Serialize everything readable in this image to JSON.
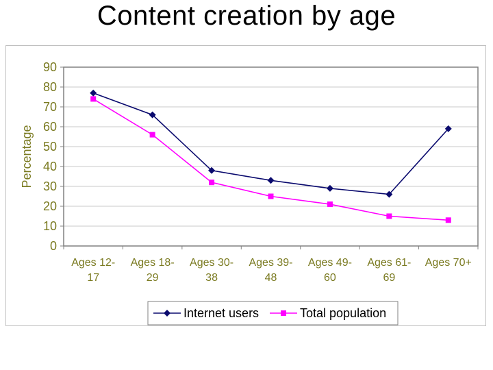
{
  "title": "Content creation by age",
  "colors": {
    "axis_text": "#7a7a20",
    "plot_border": "#808080",
    "grid": "#c8c8c8",
    "internet_users": "#0a0a6e",
    "total_population": "#ff00ff"
  },
  "chart_data": {
    "type": "line",
    "title": "Content creation by age",
    "ylabel": "Percentage",
    "xlabel": "",
    "ylim": [
      0,
      90
    ],
    "yticks": [
      "0",
      "10",
      "20",
      "30",
      "40",
      "50",
      "60",
      "70",
      "80",
      "90"
    ],
    "grid": "horizontal",
    "legend_position": "bottom",
    "categories": [
      [
        "Ages 12-",
        "17"
      ],
      [
        "Ages 18-",
        "29"
      ],
      [
        "Ages 30-",
        "38"
      ],
      [
        "Ages 39-",
        "48"
      ],
      [
        "Ages 49-",
        "60"
      ],
      [
        "Ages 61-",
        "69"
      ],
      [
        "Ages 70+",
        ""
      ]
    ],
    "series": [
      {
        "name": "Internet users",
        "marker": "diamond",
        "values": [
          77,
          66,
          38,
          33,
          29,
          26,
          59
        ]
      },
      {
        "name": "Total population",
        "marker": "square",
        "values": [
          74,
          56,
          32,
          25,
          21,
          15,
          13
        ]
      }
    ]
  }
}
